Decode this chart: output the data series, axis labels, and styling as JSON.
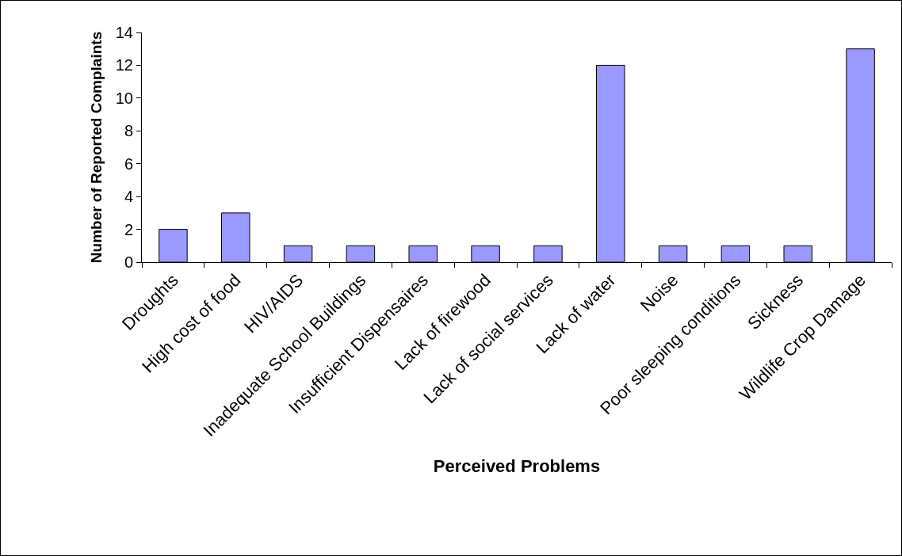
{
  "chart_data": {
    "type": "bar",
    "xlabel": "Perceived Problems",
    "ylabel": "Number of Reported Complaints",
    "categories": [
      "Droughts",
      "High cost of food",
      "HIV/AIDS",
      "Inadequate School Buildings",
      "Insufficient Dispensaires",
      "Lack of firewood",
      "Lack of social services",
      "Lack of water",
      "Noise",
      "Poor sleeping conditions",
      "Sickness",
      "Wildlife Crop Damage"
    ],
    "values": [
      2,
      3,
      1,
      1,
      1,
      1,
      1,
      12,
      1,
      1,
      1,
      13
    ],
    "color": "#9999ff",
    "ylim": [
      0,
      14
    ],
    "yticks": [
      0,
      2,
      4,
      6,
      8,
      10,
      12,
      14
    ],
    "grid": false
  }
}
